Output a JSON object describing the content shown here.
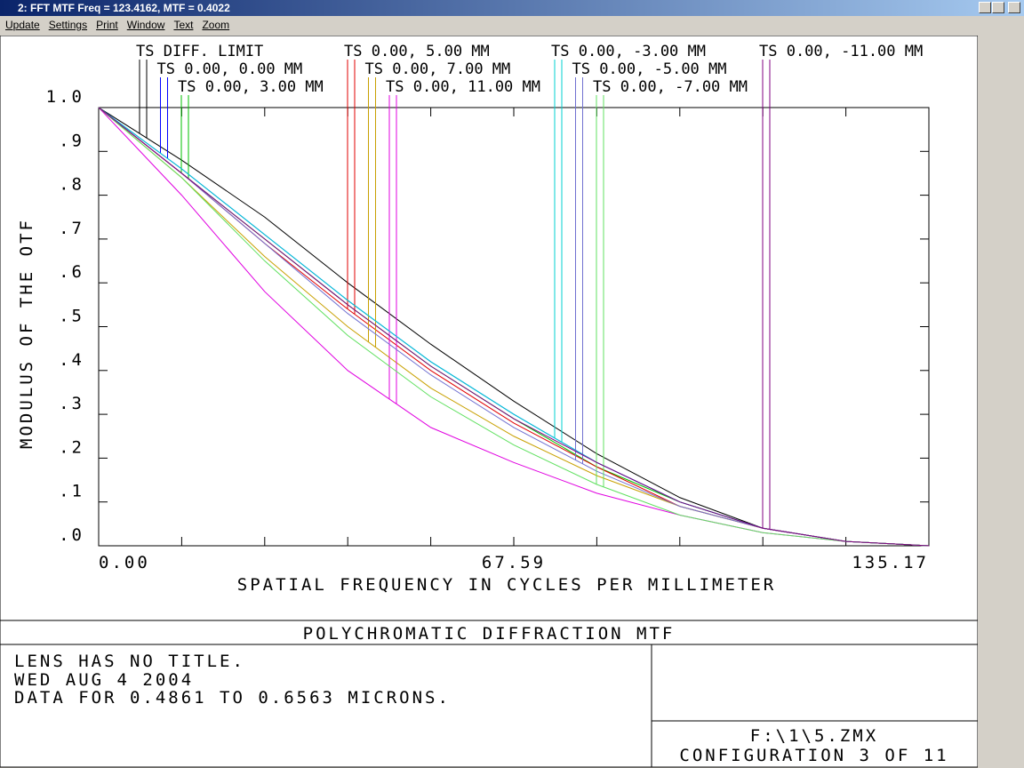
{
  "window": {
    "title": "2: FFT MTF Freq = 123.4162, MTF = 0.4022",
    "menu": [
      "Update",
      "Settings",
      "Print",
      "Window",
      "Text",
      "Zoom"
    ]
  },
  "chart_data": {
    "type": "line",
    "y_label": "MODULUS OF THE OTF",
    "x_label": "SPATIAL FREQUENCY IN CYCLES PER MILLIMETER",
    "x": [
      0,
      13.517,
      27.034,
      40.551,
      54.068,
      67.585,
      81.102,
      94.619,
      108.136,
      121.653,
      135.17
    ],
    "xlim": [
      0,
      135.17
    ],
    "xticks": [
      {
        "value": 0,
        "label": "0.00"
      },
      67.59,
      135.17
    ],
    "ylim": [
      0,
      1
    ],
    "yticks": [
      {
        "value": 0,
        "label": ".0"
      },
      {
        "value": 0.1,
        "label": ".1"
      },
      {
        "value": 0.2,
        "label": ".2"
      },
      {
        "value": 0.3,
        "label": ".3"
      },
      {
        "value": 0.4,
        "label": ".4"
      },
      {
        "value": 0.5,
        "label": ".5"
      },
      {
        "value": 0.6,
        "label": ".6"
      },
      {
        "value": 0.7,
        "label": ".7"
      },
      {
        "value": 0.8,
        "label": ".8"
      },
      {
        "value": 0.9,
        "label": ".9"
      },
      {
        "value": 1,
        "label": "1.0"
      }
    ],
    "series": [
      {
        "name": "TS DIFF. LIMIT",
        "color": "#000000",
        "values": [
          1,
          0.88,
          0.75,
          0.6,
          0.46,
          0.33,
          0.21,
          0.11,
          0.04,
          0.01,
          0
        ]
      },
      {
        "name": "TS 0.00, 0.00 MM",
        "color": "#0000ff",
        "values": [
          1,
          0.86,
          0.71,
          0.56,
          0.42,
          0.3,
          0.19,
          0.1,
          0.04,
          0.01,
          0
        ]
      },
      {
        "name": "TS 0.00, 3.00 MM",
        "color": "#00c000",
        "values": [
          1,
          0.85,
          0.7,
          0.55,
          0.41,
          0.29,
          0.18,
          0.1,
          0.04,
          0.01,
          0
        ]
      },
      {
        "name": "TS 0.00, 5.00 MM",
        "color": "#e00000",
        "values": [
          1,
          0.85,
          0.69,
          0.54,
          0.4,
          0.28,
          0.18,
          0.09,
          0.04,
          0.01,
          0
        ]
      },
      {
        "name": "TS 0.00, 7.00 MM",
        "color": "#c8a000",
        "values": [
          1,
          0.84,
          0.66,
          0.5,
          0.36,
          0.25,
          0.16,
          0.09,
          0.04,
          0.01,
          0
        ]
      },
      {
        "name": "TS 0.00, 11.00 MM",
        "color": "#e000e0",
        "values": [
          1,
          0.8,
          0.58,
          0.4,
          0.27,
          0.19,
          0.12,
          0.07,
          0.03,
          0.01,
          0
        ]
      },
      {
        "name": "TS 0.00, -3.00 MM",
        "color": "#00d0d0",
        "values": [
          1,
          0.86,
          0.71,
          0.56,
          0.42,
          0.3,
          0.19,
          0.1,
          0.04,
          0.01,
          0
        ]
      },
      {
        "name": "TS 0.00, -5.00 MM",
        "color": "#7070d0",
        "values": [
          1,
          0.85,
          0.69,
          0.53,
          0.39,
          0.27,
          0.17,
          0.09,
          0.04,
          0.01,
          0
        ]
      },
      {
        "name": "TS 0.00, -7.00 MM",
        "color": "#60e060",
        "values": [
          1,
          0.84,
          0.65,
          0.48,
          0.34,
          0.23,
          0.14,
          0.07,
          0.03,
          0.01,
          0
        ]
      },
      {
        "name": "TS 0.00, -11.00 MM",
        "color": "#800080",
        "values": [
          1,
          0.85,
          0.7,
          0.55,
          0.41,
          0.29,
          0.19,
          0.1,
          0.04,
          0.01,
          0
        ]
      }
    ]
  },
  "footer": {
    "title": "POLYCHROMATIC DIFFRACTION MTF",
    "lines": [
      "LENS HAS NO TITLE.",
      "WED AUG 4 2004",
      "DATA FOR 0.4861 TO 0.6563 MICRONS."
    ],
    "file": "F:\\1\\5.ZMX",
    "config": "CONFIGURATION 3 OF 11"
  }
}
